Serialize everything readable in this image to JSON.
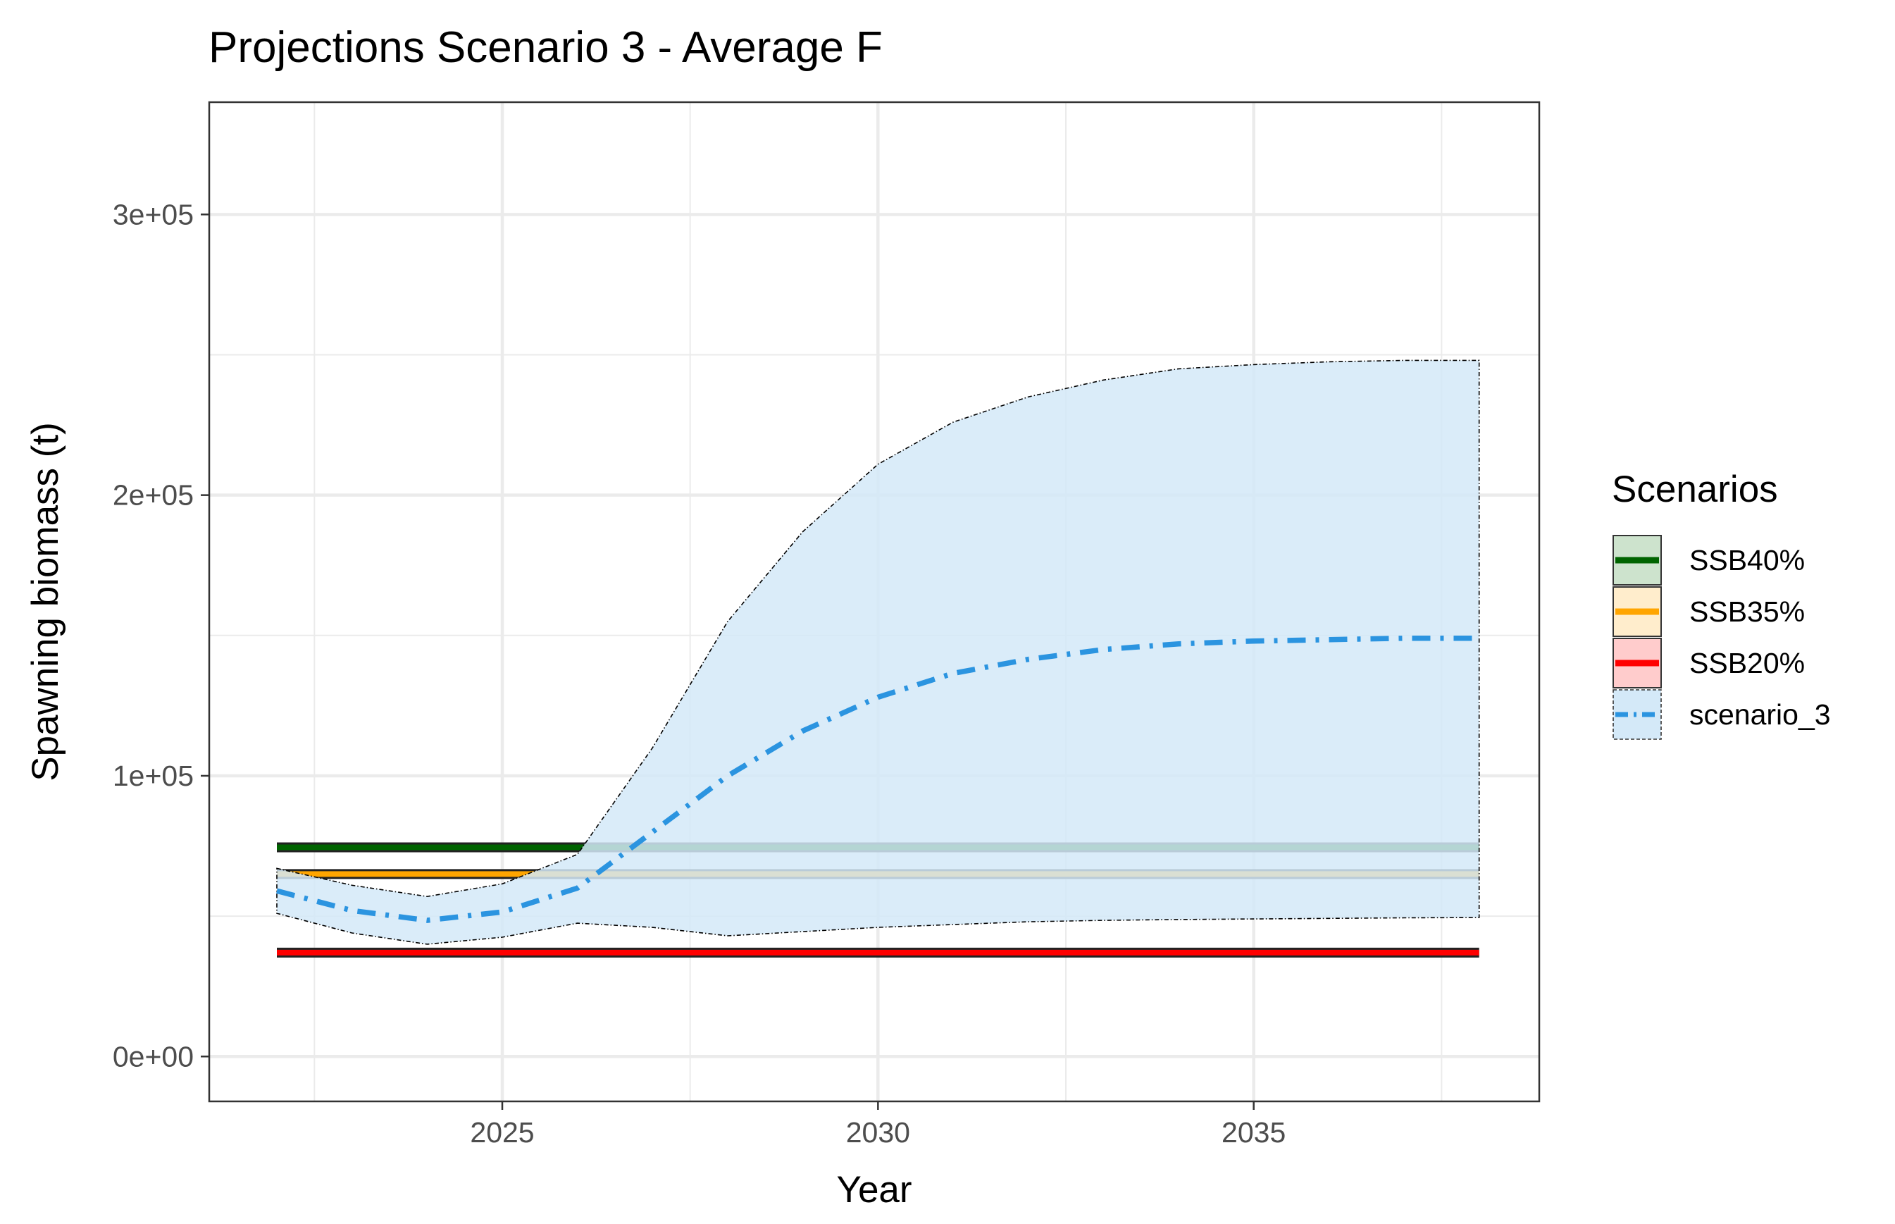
{
  "chart_data": {
    "type": "line",
    "title": "Projections Scenario 3 - Average F",
    "xlabel": "Year",
    "ylabel": "Spawning biomass (t)",
    "xlim": [
      2021.1,
      2038.8
    ],
    "ylim": [
      -16000,
      340000
    ],
    "x_ticks": [
      2025,
      2030,
      2035
    ],
    "x_tick_labels": [
      "2025",
      "2030",
      "2035"
    ],
    "y_ticks": [
      0,
      100000,
      200000,
      300000
    ],
    "y_tick_labels": [
      "0e+00",
      "1e+05",
      "2e+05",
      "3e+05"
    ],
    "grid": true,
    "legend_position": "right",
    "legend_title": "Scenarios",
    "reference_lines": [
      {
        "name": "SSB40%",
        "value": 74500,
        "color": "#006400",
        "fill": "#cde3cd"
      },
      {
        "name": "SSB35%",
        "value": 65000,
        "color": "#ffa500",
        "fill": "#ffedcc"
      },
      {
        "name": "SSB20%",
        "value": 37000,
        "color": "#ff0000",
        "fill": "#ffcccc"
      }
    ],
    "series": [
      {
        "name": "scenario_3",
        "color": "#2b94e0",
        "band_fill": "#d4e9f8",
        "x": [
          2022,
          2023,
          2024,
          2025,
          2026,
          2027,
          2028,
          2029,
          2030,
          2031,
          2032,
          2033,
          2034,
          2035,
          2036,
          2037,
          2038
        ],
        "values": [
          59000,
          52000,
          48500,
          51500,
          60000,
          80000,
          100000,
          116000,
          128000,
          136500,
          141500,
          145000,
          147000,
          148000,
          148500,
          149000,
          149000
        ],
        "lower": [
          51000,
          44000,
          40000,
          42500,
          47500,
          46000,
          43000,
          44500,
          46000,
          47000,
          48000,
          48500,
          48800,
          49000,
          49200,
          49400,
          49500
        ],
        "upper": [
          67000,
          61000,
          57000,
          61500,
          72000,
          110000,
          155000,
          187000,
          211000,
          226000,
          235000,
          241000,
          245000,
          246500,
          247500,
          248000,
          248000
        ]
      }
    ]
  }
}
